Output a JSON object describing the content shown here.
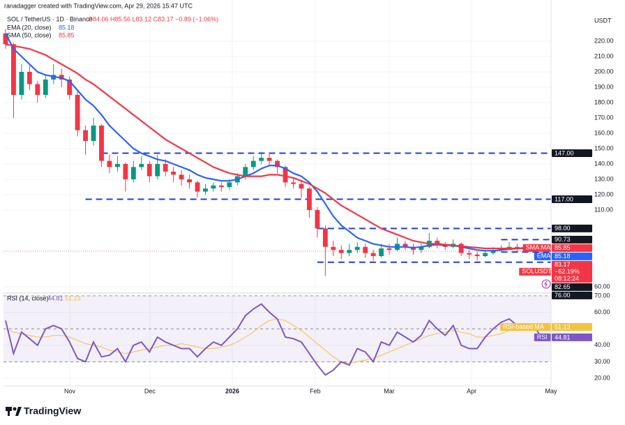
{
  "header": {
    "credit": "ranadagger created with TradingView.com, Apr 29, 2026 15:47 UTC",
    "logo": "TradingView"
  },
  "chart_data": {
    "type": "candlestick",
    "symbol": "SOL / TetherUS · 1D · Binance",
    "ohlc_legend": "O84.06 H85.56 L83.12 C83.17 −0.89 (−1.06%)",
    "currency": "USDT",
    "up_color": "#089981",
    "down_color": "#f23645",
    "candles": [
      [
        225,
        228,
        215,
        218
      ],
      [
        218,
        219,
        170,
        185
      ],
      [
        185,
        205,
        182,
        200
      ],
      [
        200,
        204,
        188,
        192
      ],
      [
        192,
        194,
        180,
        185
      ],
      [
        185,
        198,
        183,
        195
      ],
      [
        195,
        205,
        192,
        198
      ],
      [
        198,
        202,
        190,
        195
      ],
      [
        195,
        197,
        182,
        185
      ],
      [
        185,
        187,
        158,
        162
      ],
      [
        162,
        165,
        146,
        155
      ],
      [
        155,
        170,
        152,
        165
      ],
      [
        165,
        166,
        138,
        142
      ],
      [
        142,
        146,
        134,
        138
      ],
      [
        138,
        145,
        135,
        140
      ],
      [
        140,
        141,
        122,
        130
      ],
      [
        130,
        142,
        128,
        138
      ],
      [
        138,
        145,
        136,
        140
      ],
      [
        140,
        142,
        128,
        132
      ],
      [
        132,
        146,
        130,
        140
      ],
      [
        140,
        143,
        132,
        135
      ],
      [
        135,
        138,
        128,
        133
      ],
      [
        133,
        136,
        126,
        130
      ],
      [
        130,
        133,
        124,
        128
      ],
      [
        128,
        129,
        118,
        122
      ],
      [
        122,
        127,
        120,
        124
      ],
      [
        124,
        128,
        122,
        126
      ],
      [
        126,
        128,
        122,
        125
      ],
      [
        125,
        130,
        123,
        128
      ],
      [
        128,
        134,
        126,
        132
      ],
      [
        132,
        140,
        130,
        138
      ],
      [
        138,
        145,
        136,
        142
      ],
      [
        142,
        148,
        140,
        144
      ],
      [
        144,
        147,
        139,
        142
      ],
      [
        142,
        143,
        134,
        138
      ],
      [
        138,
        139,
        125,
        128
      ],
      [
        128,
        131,
        124,
        127
      ],
      [
        127,
        129,
        118,
        124
      ],
      [
        124,
        125,
        105,
        110
      ],
      [
        110,
        112,
        92,
        98
      ],
      [
        98,
        100,
        67,
        86
      ],
      [
        86,
        90,
        80,
        84
      ],
      [
        84,
        87,
        78,
        82
      ],
      [
        82,
        88,
        80,
        84
      ],
      [
        84,
        89,
        82,
        86
      ],
      [
        86,
        88,
        79,
        82
      ],
      [
        82,
        84,
        77,
        80
      ],
      [
        80,
        88,
        79,
        85
      ],
      [
        85,
        88,
        81,
        84
      ],
      [
        84,
        92,
        83,
        88
      ],
      [
        88,
        90,
        84,
        86
      ],
      [
        86,
        88,
        81,
        84
      ],
      [
        84,
        88,
        82,
        86
      ],
      [
        86,
        95,
        85,
        90
      ],
      [
        90,
        92,
        85,
        87
      ],
      [
        87,
        89,
        84,
        86
      ],
      [
        86,
        91,
        85,
        88
      ],
      [
        88,
        89,
        80,
        82
      ],
      [
        82,
        84,
        78,
        81
      ],
      [
        81,
        83,
        77,
        80
      ],
      [
        80,
        84,
        79,
        82
      ],
      [
        82,
        86,
        81,
        84
      ],
      [
        84,
        87,
        83,
        85
      ],
      [
        85,
        89,
        84,
        86
      ],
      [
        86,
        88,
        83,
        85
      ],
      [
        85,
        87,
        83,
        84
      ],
      [
        84,
        88,
        83,
        86
      ],
      [
        84.06,
        85.56,
        83.12,
        83.17
      ]
    ],
    "series": [
      {
        "name": "EMA (20, close)",
        "last": 85.18,
        "color": "#2962ff",
        "values": [
          225,
          215,
          210,
          205,
          200,
          198,
          197,
          196,
          194,
          188,
          182,
          178,
          172,
          165,
          160,
          155,
          150,
          147,
          145,
          143,
          142,
          140,
          138,
          136,
          133,
          131,
          130,
          129,
          129,
          130,
          132,
          134,
          137,
          139,
          139,
          137,
          134,
          132,
          128,
          122,
          114,
          106,
          100,
          96,
          92,
          90,
          88,
          87,
          86,
          86,
          86,
          85.5,
          86,
          87,
          87.5,
          87,
          87,
          86,
          85,
          84,
          83.5,
          83.5,
          84,
          84.5,
          85,
          85,
          85.3,
          85.18
        ]
      },
      {
        "name": "SMA (50, close)",
        "last": 85.85,
        "color": "#f23645",
        "values": [
          218,
          217,
          216,
          215,
          213,
          211,
          208,
          205,
          202,
          199,
          195,
          192,
          188,
          184,
          180,
          176,
          172,
          168,
          164,
          160,
          156,
          153,
          150,
          147,
          144,
          141,
          138,
          136,
          134,
          133,
          132,
          132,
          132,
          133,
          133,
          132,
          131,
          129,
          127,
          124,
          121,
          117,
          113,
          110,
          107,
          104,
          101,
          98,
          96,
          94,
          92,
          90,
          89,
          88,
          88,
          87.5,
          87,
          86.5,
          86,
          85.5,
          85,
          85,
          85,
          85,
          85,
          85.5,
          85.8,
          85.85
        ]
      }
    ],
    "levels": [
      {
        "value": 147,
        "from": 12
      },
      {
        "value": 117,
        "from": 10
      },
      {
        "value": 98,
        "from": 39
      },
      {
        "value": 90.73,
        "from": 62
      },
      {
        "value": 82.65,
        "from": 62
      },
      {
        "value": 76,
        "from": 39
      }
    ],
    "level_color": "#1e3fd8",
    "xlim": [
      -0.26,
      68.24
    ],
    "xticks": [
      {
        "value": 8.03,
        "label": "Nov"
      },
      {
        "value": 18.06,
        "label": "Dec"
      },
      {
        "value": 28.36,
        "label": "2026"
      },
      {
        "value": 38.74,
        "label": "Feb"
      },
      {
        "value": 48,
        "label": "Mar"
      },
      {
        "value": 58.3,
        "label": "Apr"
      },
      {
        "value": 68.24,
        "label": "May"
      }
    ],
    "ylim": [
      56.8,
      236.8
    ],
    "yticks": [
      {
        "value": 60,
        "label": "60.00"
      },
      {
        "value": 110,
        "label": "110.00"
      },
      {
        "value": 120,
        "label": "120.00"
      },
      {
        "value": 130,
        "label": "130.00"
      },
      {
        "value": 140,
        "label": "140.00"
      },
      {
        "value": 150,
        "label": "150.00"
      },
      {
        "value": 160,
        "label": "160.00"
      },
      {
        "value": 170,
        "label": "170.00"
      },
      {
        "value": 180,
        "label": "180.00"
      },
      {
        "value": 190,
        "label": "190.00"
      },
      {
        "value": 200,
        "label": "200.00"
      },
      {
        "value": 210,
        "label": "210.00"
      },
      {
        "value": 220,
        "label": "220.00"
      }
    ],
    "price_tags": [
      {
        "value": 147,
        "label": "147.00",
        "color": "#131722"
      },
      {
        "value": 117,
        "label": "117.00",
        "color": "#131722"
      },
      {
        "value": 98,
        "label": "98.00",
        "color": "#131722"
      },
      {
        "value": 90.73,
        "color": "#131722"
      },
      {
        "value": 85.85,
        "name": "SMA:MA",
        "color": "#f23645"
      },
      {
        "value": 85.18,
        "name": "EMA",
        "color": "#2962ff"
      },
      {
        "value": 83.17,
        "name": "SOLUSDT",
        "color": "#f23645",
        "extra": [
          "−62.19%",
          "08:12:24"
        ]
      },
      {
        "value": 82.65,
        "color": "#131722"
      },
      {
        "value": 76,
        "label": "76.00",
        "color": "#131722"
      }
    ],
    "rsi": {
      "title": "RSI (14, close)",
      "color": "#7e57c2",
      "ma_color": "#f5c242",
      "values": [
        55,
        35,
        48,
        44,
        40,
        50,
        52,
        50,
        42,
        32,
        30,
        42,
        33,
        34,
        38,
        30,
        40,
        42,
        36,
        45,
        42,
        40,
        38,
        38,
        33,
        38,
        42,
        40,
        45,
        50,
        58,
        62,
        65,
        60,
        56,
        45,
        44,
        42,
        35,
        28,
        22,
        25,
        30,
        28,
        38,
        36,
        30,
        42,
        40,
        48,
        45,
        42,
        46,
        55,
        50,
        46,
        52,
        40,
        38,
        38,
        45,
        50,
        54,
        56,
        52,
        50,
        53,
        44.81
      ],
      "ma": [
        50,
        48,
        47,
        46,
        45,
        45,
        46,
        46,
        45,
        43,
        41,
        40,
        39,
        37,
        36,
        35,
        36,
        37,
        38,
        39,
        40,
        40,
        41,
        40,
        39,
        38,
        38,
        39,
        40,
        42,
        45,
        48,
        52,
        55,
        56,
        55,
        52,
        49,
        45,
        41,
        37,
        33,
        30,
        29,
        30,
        31,
        32,
        34,
        36,
        38,
        40,
        42,
        44,
        46,
        47,
        48,
        49,
        48,
        47,
        45,
        45,
        46,
        47,
        49,
        50,
        51,
        51.5,
        51.13
      ],
      "ylim": [
        15.8,
        70.8
      ],
      "yticks": [
        {
          "value": 20,
          "label": "20.00"
        },
        {
          "value": 30,
          "label": "30.00"
        },
        {
          "value": 40,
          "label": "40.00"
        },
        {
          "value": 60,
          "label": "60.00"
        },
        {
          "value": 70,
          "label": "70.00"
        }
      ],
      "band": [
        30,
        70
      ],
      "mid": 50,
      "tags": [
        {
          "name": "RSI-based MA",
          "value": 51.13,
          "color": "#f5c242"
        },
        {
          "name": "RSI",
          "value": 44.81,
          "color": "#7e57c2"
        }
      ]
    }
  }
}
